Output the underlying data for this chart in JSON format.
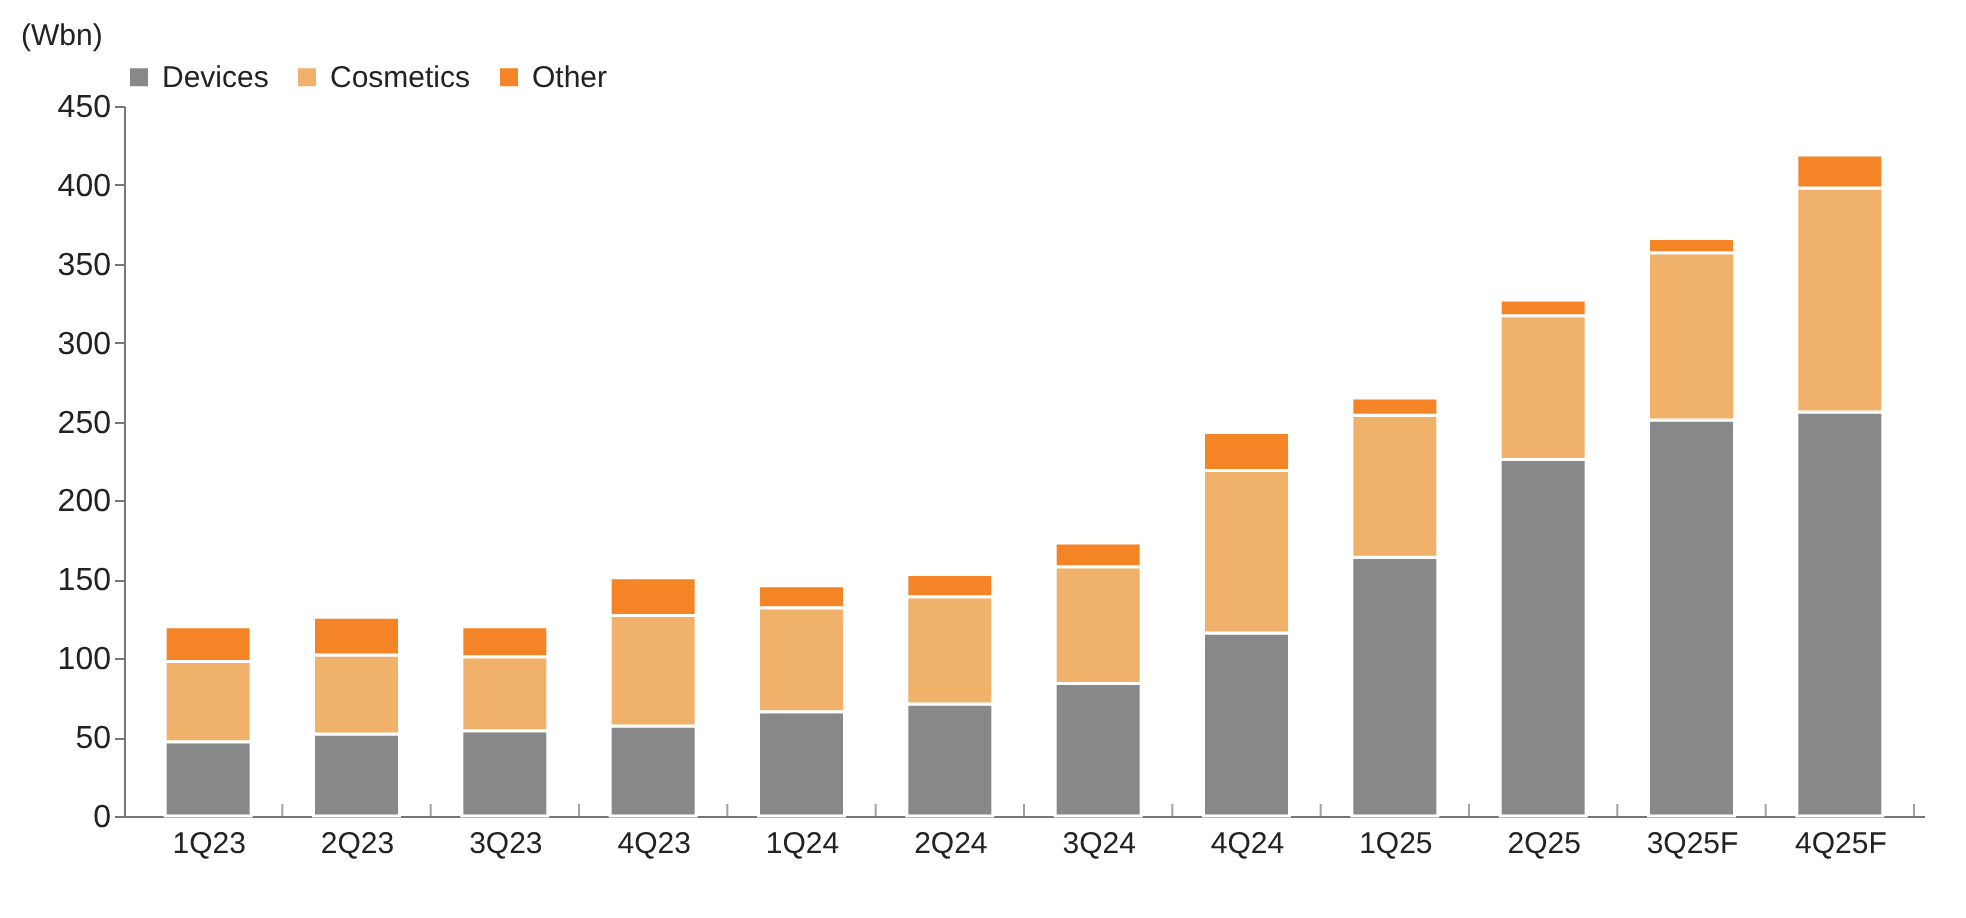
{
  "chart_data": {
    "type": "bar",
    "stacked": true,
    "ylabel": "(Wbn)",
    "categories": [
      "1Q23",
      "2Q23",
      "3Q23",
      "4Q23",
      "1Q24",
      "2Q24",
      "3Q24",
      "4Q24",
      "1Q25",
      "2Q25",
      "3Q25F",
      "4Q25F"
    ],
    "series": [
      {
        "name": "Devices",
        "color": "#86888a",
        "values": [
          47,
          52,
          54,
          57,
          66,
          71,
          84,
          116,
          164,
          226,
          251,
          256
        ]
      },
      {
        "name": "Cosmetics",
        "color": "#f0b16b",
        "values": [
          51,
          50,
          47,
          70,
          66,
          68,
          74,
          103,
          90,
          91,
          106,
          142
        ]
      },
      {
        "name": "Other",
        "color": "#f58426",
        "values": [
          22,
          24,
          19,
          24,
          14,
          14,
          15,
          24,
          11,
          10,
          9,
          21
        ]
      }
    ],
    "ylim": [
      0,
      450
    ],
    "yticks": [
      0,
      50,
      100,
      150,
      200,
      250,
      300,
      350,
      400,
      450
    ],
    "grid": false,
    "legend": "top"
  }
}
